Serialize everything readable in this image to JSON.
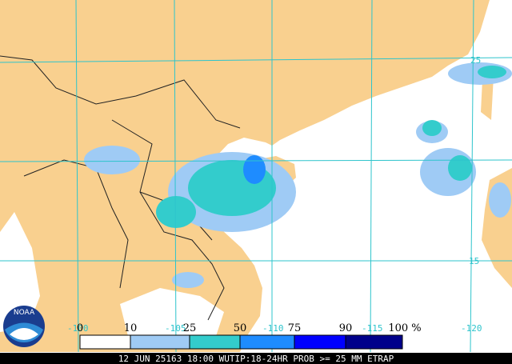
{
  "map": {
    "grid_labels": [
      "-100",
      "-105",
      "-110",
      "-115",
      "-120",
      "25",
      "15"
    ],
    "legend": {
      "labels": [
        "0",
        "10",
        "25",
        "50",
        "75",
        "90",
        "100 %"
      ],
      "colors": [
        "#ffffff",
        "#9fcbf5",
        "#33cccc",
        "#1e8cff",
        "#0000ff",
        "#00008b"
      ]
    },
    "logo": "NOAA",
    "footer": "12 JUN 25163 18:00 WUTIP:18-24HR PROB >= 25 MM ETRAP"
  }
}
